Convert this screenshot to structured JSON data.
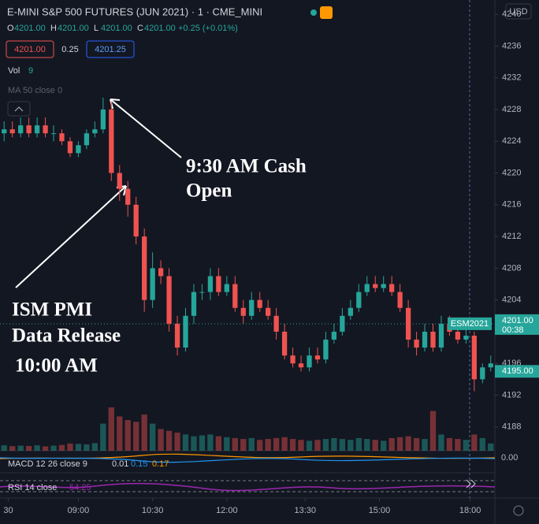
{
  "chart_data": {
    "type": "candlestick",
    "title": "E-MINI S&P 500 FUTURES (JUN 2021) · 1 · CME_MINI",
    "ohlc_legend": {
      "labels": [
        "O",
        "H",
        "L",
        "C"
      ],
      "values": [
        "4201.00",
        "4201.00",
        "4201.00",
        "4201.00"
      ],
      "change": "+0.25 (+0.01%)"
    },
    "sell_price": "4201.00",
    "spread": "0.25",
    "buy_price": "4201.25",
    "volume_label": "Vol",
    "volume_value": "9",
    "ma_label": "MA 50 close 0",
    "currency": "USD",
    "annotations": [
      {
        "lines": [
          "9:30 AM Cash",
          "Open"
        ]
      },
      {
        "lines": [
          "ISM PMI",
          "Data Release",
          "10:00 AM"
        ]
      }
    ],
    "up_color": "#26a69a",
    "down_color": "#ef5350",
    "grid": false,
    "xlim": [
      0,
      60
    ],
    "xticks": [
      {
        "value": 1,
        "label": "30"
      },
      {
        "value": 9.5,
        "label": "09:00"
      },
      {
        "value": 18.5,
        "label": "10:30"
      },
      {
        "value": 27.5,
        "label": "12:00"
      },
      {
        "value": 37,
        "label": "13:30"
      },
      {
        "value": 46,
        "label": "15:00"
      },
      {
        "value": 57,
        "label": "18:00"
      }
    ],
    "ylim": [
      4185,
      4241.8
    ],
    "yticks": [
      4188,
      4192,
      4196,
      4200,
      4204,
      4208,
      4212,
      4216,
      4220,
      4224,
      4228,
      4232,
      4236,
      4240
    ],
    "open": [
      4225,
      4225.5,
      4225,
      4226,
      4225,
      4226,
      4225,
      4225,
      4224,
      4222.5,
      4223.5,
      4225,
      4225.5,
      4228,
      4220,
      4218,
      4216,
      4212,
      4204,
      4208,
      4207,
      4201,
      4198,
      4202,
      4205,
      4205,
      4207,
      4205,
      4206,
      4203,
      4202,
      4204,
      4203,
      4202,
      4200,
      4197,
      4196,
      4195.5,
      4197,
      4196.5,
      4199,
      4200,
      4202,
      4203,
      4205,
      4206,
      4205.5,
      4206,
      4205,
      4203,
      4199,
      4198,
      4200,
      4198,
      4201,
      4200,
      4199,
      4199.5,
      4194,
      4195.5
    ],
    "high": [
      4226.5,
      4226.5,
      4227,
      4227,
      4227,
      4227,
      4226,
      4225.5,
      4224.5,
      4224,
      4225.5,
      4226.5,
      4229.5,
      4229,
      4221,
      4219,
      4217,
      4213,
      4210,
      4209,
      4208,
      4202,
      4203,
      4206,
      4206,
      4208,
      4208,
      4207,
      4207,
      4204,
      4205,
      4205,
      4204,
      4203,
      4201,
      4198,
      4197,
      4198,
      4198,
      4200,
      4201,
      4203,
      4204,
      4206,
      4207,
      4207,
      4207,
      4207,
      4206,
      4204,
      4200,
      4201,
      4201,
      4202,
      4202,
      4201,
      4200.5,
      4200,
      4196,
      4197
    ],
    "low": [
      4224,
      4224.5,
      4224.5,
      4224.5,
      4224.5,
      4224.5,
      4224,
      4223.5,
      4222,
      4222,
      4223,
      4224.5,
      4225,
      4219,
      4216.5,
      4214.5,
      4211,
      4202.5,
      4203,
      4206,
      4200,
      4197,
      4197.5,
      4201,
      4204,
      4204,
      4204.5,
      4204.5,
      4202.5,
      4201,
      4201.5,
      4202.5,
      4201.5,
      4199,
      4196.5,
      4195.5,
      4195,
      4195,
      4196,
      4196,
      4198.5,
      4199.5,
      4201.5,
      4202.5,
      4204.5,
      4205,
      4205,
      4204.5,
      4202.5,
      4198,
      4197,
      4197.5,
      4197.5,
      4197.5,
      4199.5,
      4198.5,
      4198.5,
      4192.5,
      4193.5,
      4195
    ],
    "close": [
      4225.5,
      4225,
      4226,
      4225,
      4226,
      4225,
      4225,
      4224,
      4222.5,
      4223.5,
      4225,
      4225.5,
      4228,
      4220,
      4218,
      4216,
      4212,
      4204,
      4208,
      4207,
      4201,
      4198,
      4202,
      4205,
      4205,
      4207,
      4205,
      4206,
      4203,
      4202,
      4204,
      4203,
      4202,
      4200,
      4197,
      4196,
      4195.5,
      4197,
      4196.5,
      4199,
      4200,
      4202,
      4203,
      4205,
      4206,
      4205.5,
      4206,
      4205,
      4203,
      4199,
      4198,
      4200,
      4198,
      4201,
      4200,
      4199,
      4199.5,
      4194,
      4195.5,
      4196
    ],
    "volume": [
      300,
      250,
      280,
      260,
      300,
      240,
      280,
      320,
      400,
      380,
      350,
      420,
      1500,
      2400,
      1900,
      1700,
      1600,
      2000,
      1500,
      1200,
      1100,
      1000,
      900,
      800,
      850,
      900,
      800,
      750,
      700,
      650,
      700,
      600,
      650,
      700,
      750,
      650,
      600,
      550,
      600,
      650,
      700,
      650,
      600,
      700,
      650,
      600,
      550,
      700,
      750,
      800,
      700,
      650,
      2200,
      900,
      700,
      650,
      600,
      900,
      700,
      400
    ],
    "last_price": {
      "label": "ESM2021",
      "value": 4201.0,
      "value_label": "4201.00",
      "countdown": "00:38"
    },
    "prev_price": {
      "value": 4195.0,
      "label": "4195.00"
    },
    "macd": {
      "label": "MACD 12 26 close 9",
      "values": [
        "0.01",
        "0.15",
        "0.17"
      ],
      "axis_label": "0.00"
    },
    "rsi": {
      "label": "RSI 14 close",
      "value": "54.25"
    }
  }
}
